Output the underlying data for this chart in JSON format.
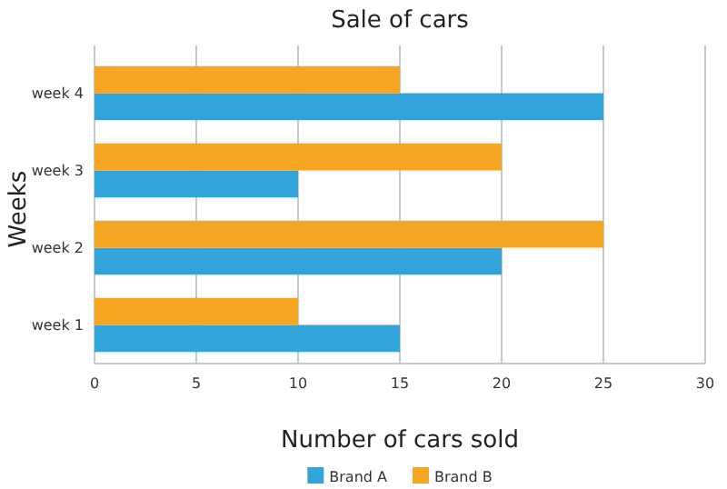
{
  "chart_data": {
    "type": "bar",
    "orientation": "horizontal",
    "title": "Sale of cars",
    "xlabel": "Number of cars sold",
    "ylabel": "Weeks",
    "categories": [
      "week 4",
      "week 3",
      "week 2",
      "week 1"
    ],
    "series": [
      {
        "name": "Brand A",
        "color": "#33a3dc",
        "values": [
          25,
          10,
          20,
          15
        ]
      },
      {
        "name": "Brand B",
        "color": "#f5a623",
        "values": [
          15,
          20,
          25,
          10
        ]
      }
    ],
    "xlim": [
      0,
      30
    ],
    "xticks": [
      0,
      5,
      10,
      15,
      20,
      25,
      30
    ],
    "grid": "x",
    "legend": "bottom"
  }
}
